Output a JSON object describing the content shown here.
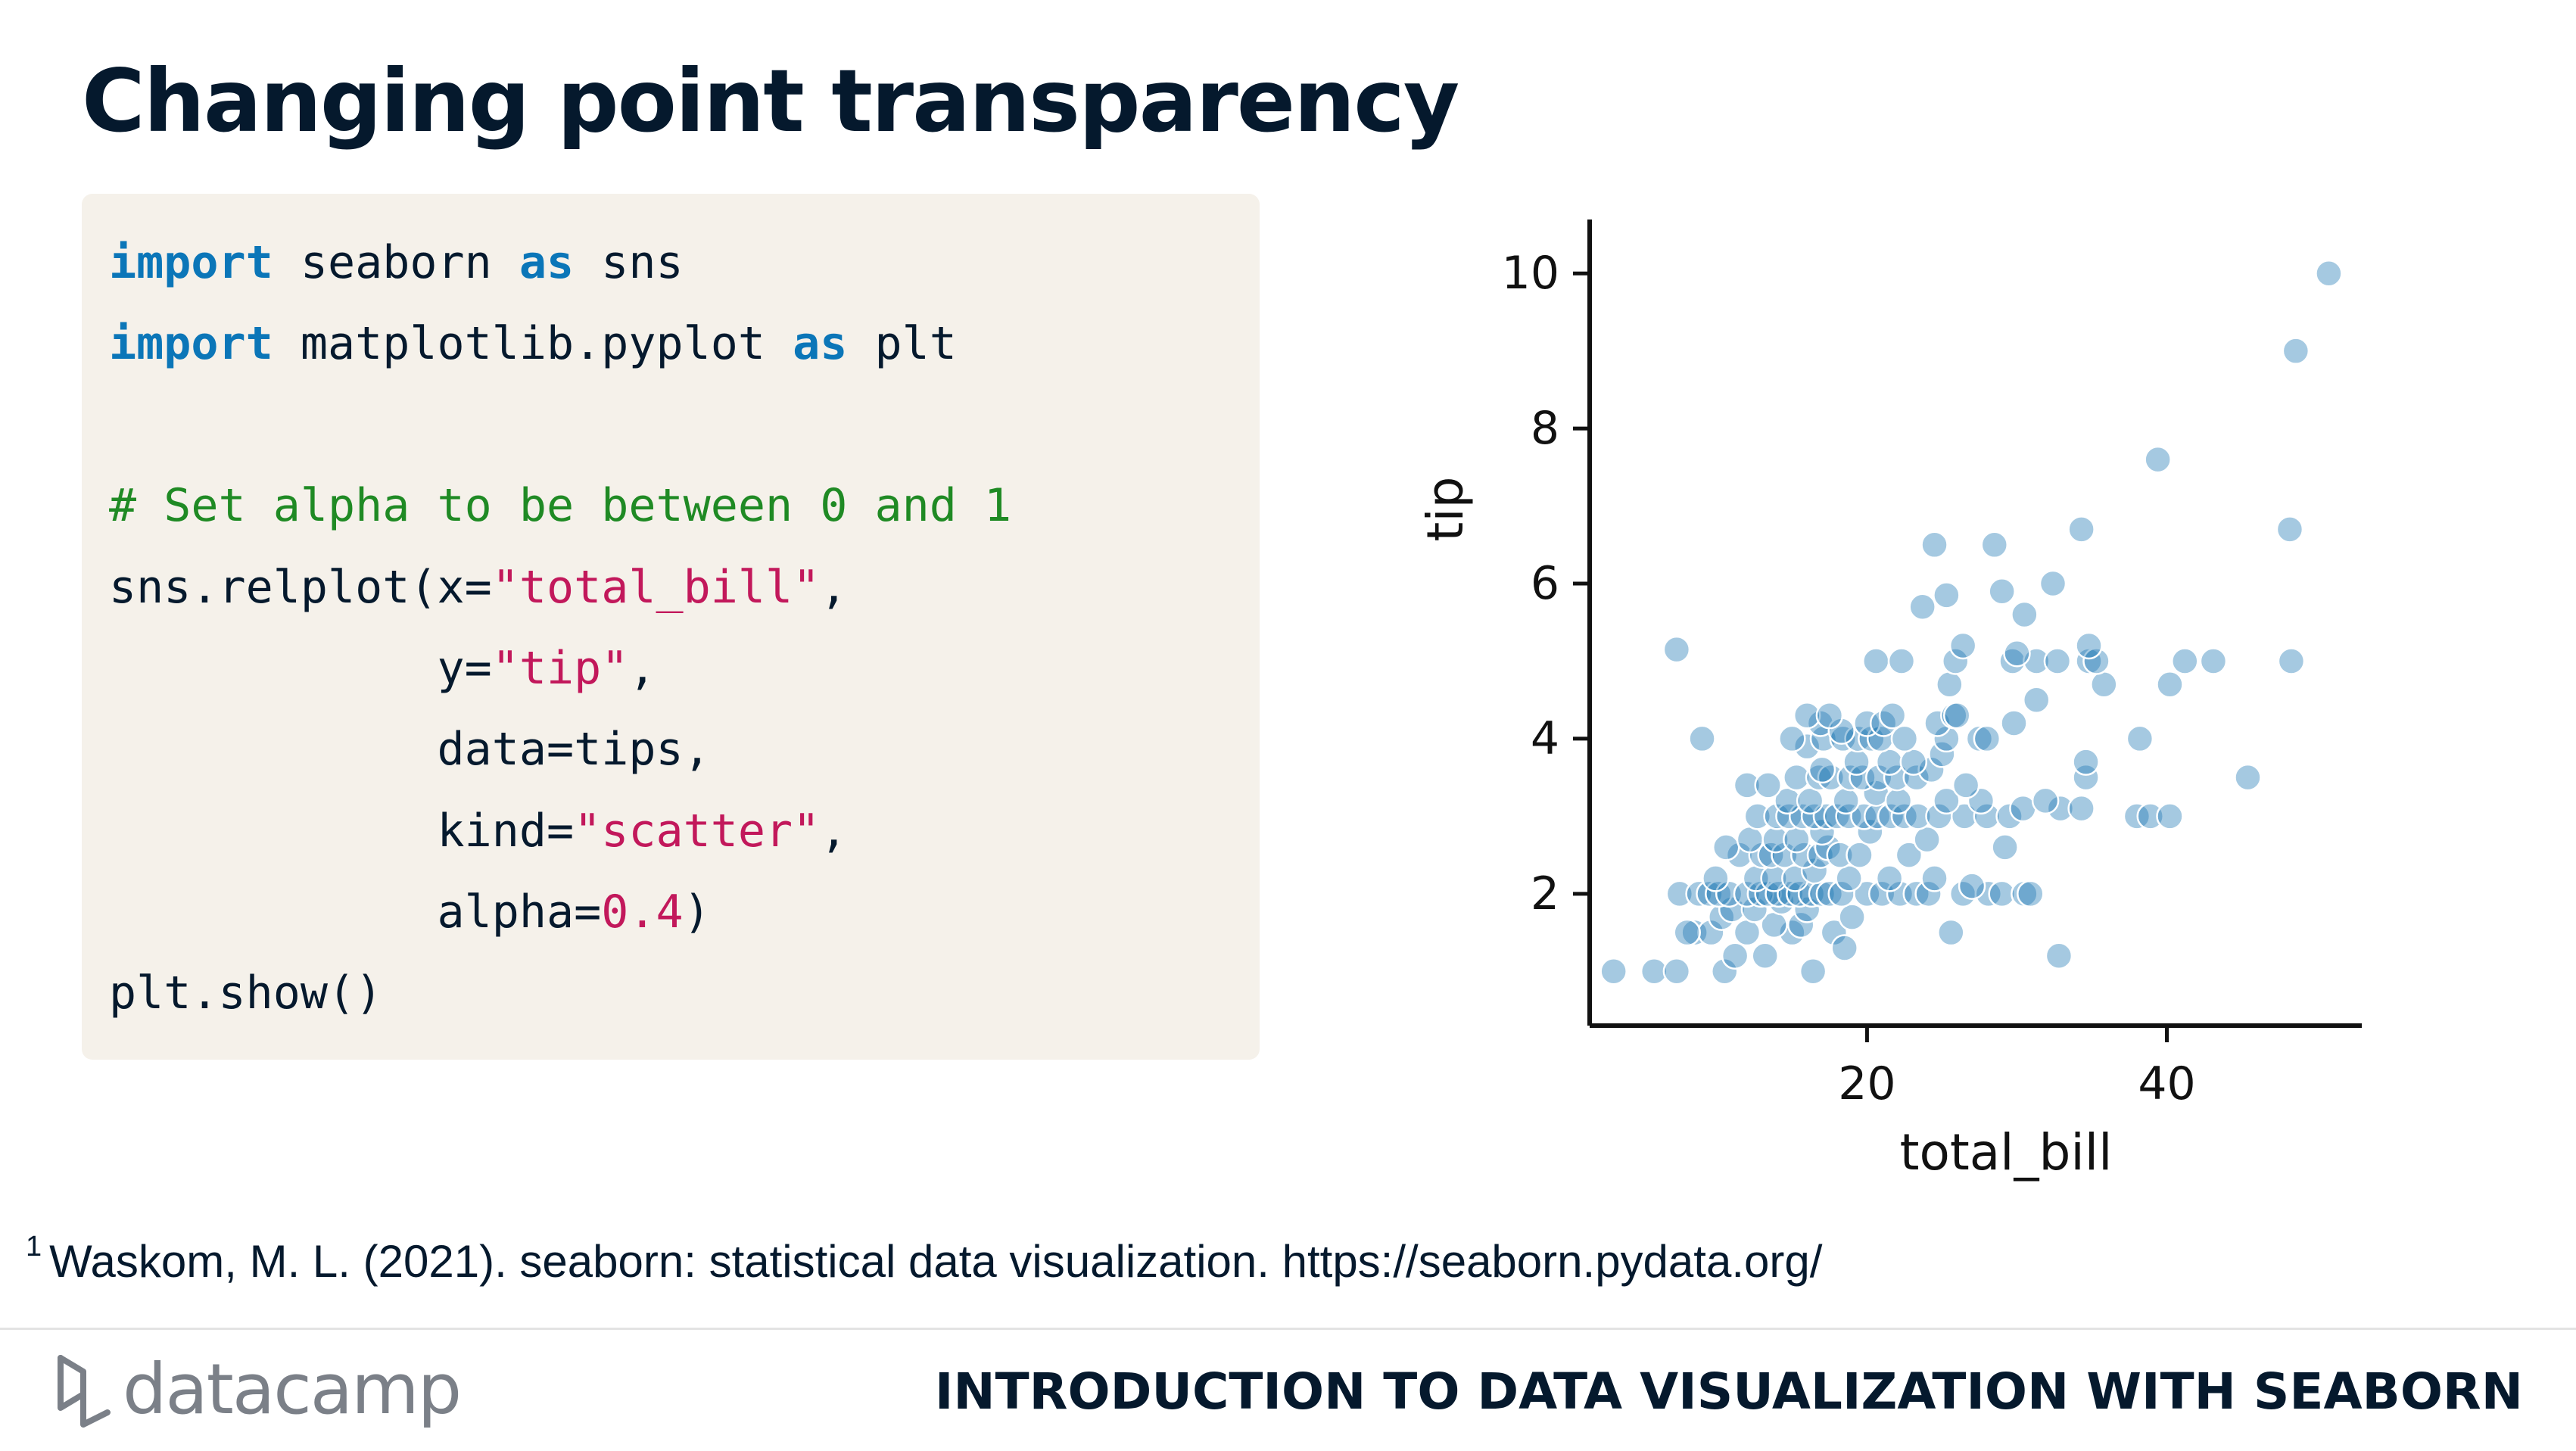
{
  "slide": {
    "title": "Changing point transparency",
    "footnote_marker": "1",
    "footnote_text": "Waskom, M. L. (2021). seaborn: statistical data visualization. https://seaborn.pydata.org/",
    "brand": "datacamp",
    "course_title": "INTRODUCTION TO DATA VISUALIZATION WITH SEABORN"
  },
  "code": {
    "l1_kw1": "import",
    "l1_a": " seaborn ",
    "l1_kw2": "as",
    "l1_b": " sns",
    "l2_kw1": "import",
    "l2_a": " matplotlib.pyplot ",
    "l2_kw2": "as",
    "l2_b": " plt",
    "l3_comment": "# Set alpha to be between 0 and 1",
    "l4_a": "sns.relplot(x=",
    "l4_str": "\"total_bill\"",
    "l4_b": ",",
    "l5_a": "            y=",
    "l5_str": "\"tip\"",
    "l5_b": ",",
    "l6_a": "            data=tips,",
    "l7_a": "            kind=",
    "l7_str": "\"scatter\"",
    "l7_b": ",",
    "l8_a": "            alpha=",
    "l8_num": "0.4",
    "l8_b": ")",
    "l9_a": "plt.show()"
  },
  "chart_data": {
    "type": "scatter",
    "xlabel": "total_bill",
    "ylabel": "tip",
    "x_ticks": [
      20,
      40
    ],
    "y_ticks": [
      2,
      4,
      6,
      8,
      10
    ],
    "xlim": [
      1.5,
      53
    ],
    "ylim": [
      0.3,
      10.5
    ],
    "point_color": "#1f77b4",
    "alpha": 0.4,
    "points": [
      [
        3.1,
        1.0
      ],
      [
        5.8,
        1.0
      ],
      [
        7.3,
        1.0
      ],
      [
        10.5,
        1.0
      ],
      [
        16.4,
        1.0
      ],
      [
        11.2,
        1.2
      ],
      [
        13.2,
        1.2
      ],
      [
        32.8,
        1.2
      ],
      [
        8.5,
        1.5
      ],
      [
        9.6,
        1.5
      ],
      [
        12.0,
        1.5
      ],
      [
        15.0,
        1.5
      ],
      [
        17.8,
        1.5
      ],
      [
        25.6,
        1.5
      ],
      [
        8.0,
        1.5
      ],
      [
        10.3,
        1.7
      ],
      [
        13.8,
        1.6
      ],
      [
        15.6,
        1.6
      ],
      [
        18.5,
        1.3
      ],
      [
        19.0,
        1.7
      ],
      [
        11.0,
        1.8
      ],
      [
        12.5,
        1.8
      ],
      [
        14.3,
        1.9
      ],
      [
        16.0,
        1.8
      ],
      [
        7.5,
        2.0
      ],
      [
        8.8,
        2.0
      ],
      [
        9.5,
        2.0
      ],
      [
        10.1,
        2.0
      ],
      [
        10.8,
        2.0
      ],
      [
        12.0,
        2.0
      ],
      [
        12.9,
        2.0
      ],
      [
        13.4,
        2.0
      ],
      [
        14.1,
        2.0
      ],
      [
        14.9,
        2.0
      ],
      [
        15.5,
        2.0
      ],
      [
        16.3,
        2.0
      ],
      [
        17.0,
        2.0
      ],
      [
        17.5,
        2.0
      ],
      [
        18.3,
        2.0
      ],
      [
        20.0,
        2.0
      ],
      [
        21.0,
        2.0
      ],
      [
        22.2,
        2.0
      ],
      [
        23.3,
        2.0
      ],
      [
        24.1,
        2.0
      ],
      [
        26.4,
        2.0
      ],
      [
        28.1,
        2.0
      ],
      [
        29.0,
        2.0
      ],
      [
        30.5,
        2.0
      ],
      [
        30.9,
        2.0
      ],
      [
        9.9,
        2.2
      ],
      [
        12.6,
        2.2
      ],
      [
        13.8,
        2.2
      ],
      [
        15.2,
        2.2
      ],
      [
        16.5,
        2.3
      ],
      [
        18.8,
        2.2
      ],
      [
        21.5,
        2.2
      ],
      [
        24.5,
        2.2
      ],
      [
        27.0,
        2.1
      ],
      [
        11.5,
        2.5
      ],
      [
        13.0,
        2.5
      ],
      [
        13.6,
        2.5
      ],
      [
        14.5,
        2.5
      ],
      [
        15.8,
        2.5
      ],
      [
        16.9,
        2.5
      ],
      [
        17.4,
        2.6
      ],
      [
        18.2,
        2.5
      ],
      [
        19.5,
        2.5
      ],
      [
        22.8,
        2.5
      ],
      [
        29.2,
        2.6
      ],
      [
        10.6,
        2.6
      ],
      [
        12.2,
        2.7
      ],
      [
        13.9,
        2.7
      ],
      [
        15.3,
        2.7
      ],
      [
        17.0,
        2.8
      ],
      [
        20.2,
        2.8
      ],
      [
        24.0,
        2.7
      ],
      [
        12.7,
        3.0
      ],
      [
        14.0,
        3.0
      ],
      [
        14.8,
        3.0
      ],
      [
        15.7,
        3.0
      ],
      [
        16.5,
        3.0
      ],
      [
        17.3,
        3.0
      ],
      [
        18.0,
        3.0
      ],
      [
        18.8,
        3.0
      ],
      [
        19.8,
        3.0
      ],
      [
        20.7,
        3.0
      ],
      [
        21.6,
        3.0
      ],
      [
        22.5,
        3.0
      ],
      [
        23.4,
        3.0
      ],
      [
        24.8,
        3.0
      ],
      [
        26.5,
        3.0
      ],
      [
        28.0,
        3.0
      ],
      [
        29.5,
        3.0
      ],
      [
        30.4,
        3.1
      ],
      [
        32.9,
        3.1
      ],
      [
        34.3,
        3.1
      ],
      [
        38.0,
        3.0
      ],
      [
        38.9,
        3.0
      ],
      [
        40.2,
        3.0
      ],
      [
        14.7,
        3.2
      ],
      [
        16.2,
        3.2
      ],
      [
        18.6,
        3.2
      ],
      [
        20.6,
        3.3
      ],
      [
        22.1,
        3.2
      ],
      [
        25.3,
        3.2
      ],
      [
        27.6,
        3.2
      ],
      [
        31.9,
        3.2
      ],
      [
        12.0,
        3.4
      ],
      [
        15.3,
        3.5
      ],
      [
        16.8,
        3.5
      ],
      [
        17.6,
        3.5
      ],
      [
        18.9,
        3.5
      ],
      [
        19.7,
        3.5
      ],
      [
        20.8,
        3.5
      ],
      [
        22.0,
        3.5
      ],
      [
        23.3,
        3.5
      ],
      [
        24.3,
        3.6
      ],
      [
        26.6,
        3.4
      ],
      [
        34.6,
        3.5
      ],
      [
        45.4,
        3.5
      ],
      [
        13.4,
        3.4
      ],
      [
        17.0,
        3.6
      ],
      [
        19.3,
        3.7
      ],
      [
        21.5,
        3.7
      ],
      [
        23.1,
        3.7
      ],
      [
        25.0,
        3.8
      ],
      [
        34.6,
        3.7
      ],
      [
        16.0,
        3.9
      ],
      [
        17.1,
        4.0
      ],
      [
        18.4,
        4.0
      ],
      [
        19.4,
        4.0
      ],
      [
        20.3,
        4.0
      ],
      [
        20.9,
        4.0
      ],
      [
        22.5,
        4.0
      ],
      [
        25.3,
        4.0
      ],
      [
        27.5,
        4.0
      ],
      [
        28.0,
        4.0
      ],
      [
        38.2,
        4.0
      ],
      [
        9.0,
        4.0
      ],
      [
        15.0,
        4.0
      ],
      [
        16.9,
        4.2
      ],
      [
        18.3,
        4.1
      ],
      [
        20.0,
        4.2
      ],
      [
        21.1,
        4.2
      ],
      [
        24.7,
        4.2
      ],
      [
        29.8,
        4.2
      ],
      [
        16.0,
        4.3
      ],
      [
        17.5,
        4.3
      ],
      [
        21.7,
        4.3
      ],
      [
        25.8,
        4.3
      ],
      [
        26.0,
        4.3
      ],
      [
        31.3,
        4.5
      ],
      [
        25.5,
        4.7
      ],
      [
        35.8,
        4.7
      ],
      [
        40.2,
        4.7
      ],
      [
        41.2,
        5.0
      ],
      [
        43.1,
        5.0
      ],
      [
        48.3,
        5.0
      ],
      [
        7.3,
        5.15
      ],
      [
        20.6,
        5.0
      ],
      [
        22.3,
        5.0
      ],
      [
        25.9,
        5.0
      ],
      [
        29.7,
        5.0
      ],
      [
        31.3,
        5.0
      ],
      [
        32.7,
        5.0
      ],
      [
        34.8,
        5.0
      ],
      [
        35.3,
        5.0
      ],
      [
        26.4,
        5.2
      ],
      [
        30.0,
        5.1
      ],
      [
        34.8,
        5.2
      ],
      [
        23.7,
        5.7
      ],
      [
        25.3,
        5.85
      ],
      [
        29.0,
        5.9
      ],
      [
        30.5,
        5.6
      ],
      [
        32.4,
        6.0
      ],
      [
        24.5,
        6.5
      ],
      [
        28.5,
        6.5
      ],
      [
        34.3,
        6.7
      ],
      [
        48.2,
        6.7
      ],
      [
        39.4,
        7.6
      ],
      [
        48.6,
        9.0
      ],
      [
        50.8,
        10.0
      ]
    ]
  }
}
